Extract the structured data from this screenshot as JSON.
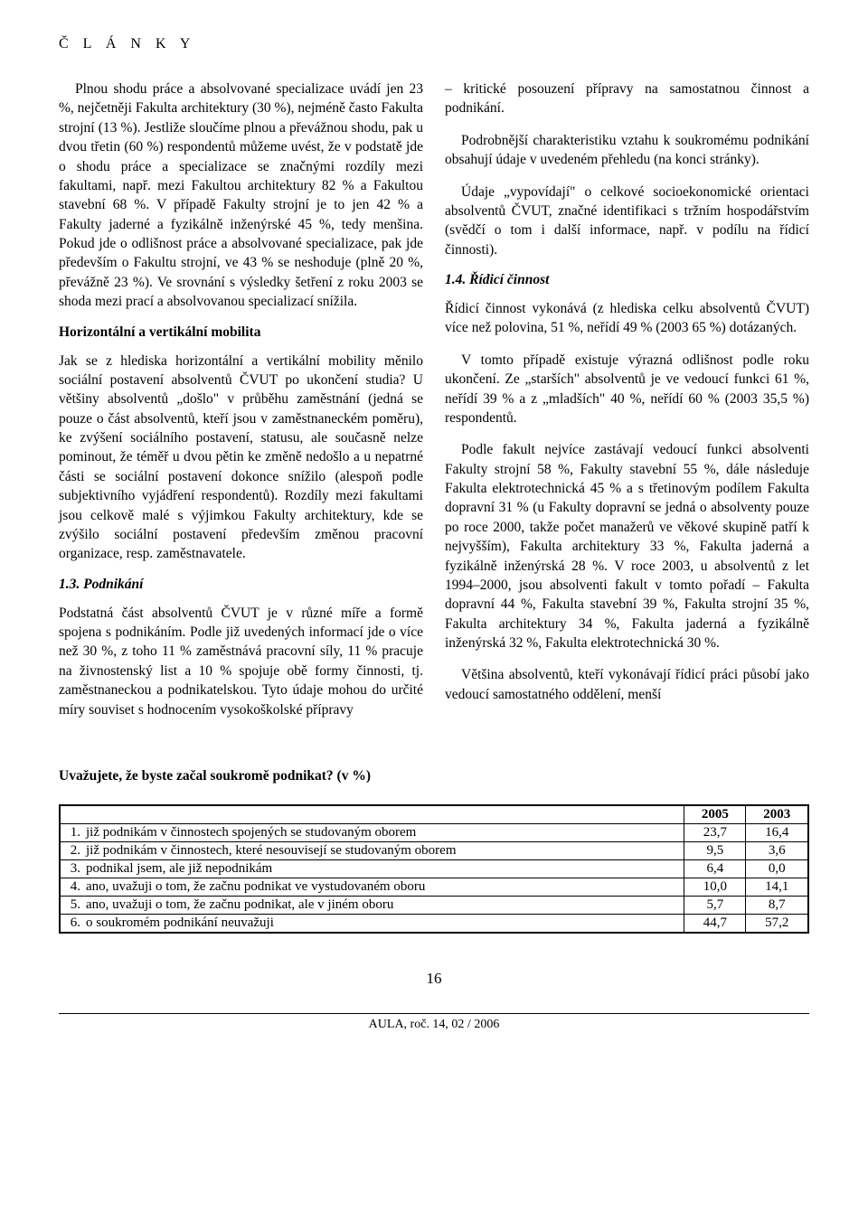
{
  "header": "Č L Á N K Y",
  "left": {
    "p1": "Plnou shodu práce a absolvované specializace uvádí jen 23 %, nejčetněji Fakulta architektury (30 %), nejméně často Fakulta strojní (13 %). Jestliže sloučíme plnou a převážnou shodu, pak u dvou třetin (60 %) respondentů můžeme uvést, že v podstatě jde o shodu práce a specializace se značnými rozdíly mezi fakultami, např. mezi Fakultou architektury 82 % a Fakultou stavební 68 %. V případě Fakulty strojní je to jen 42 % a Fakulty jaderné a fyzikálně inženýrské 45 %, tedy menšina. Pokud jde o odlišnost práce a absolvované specializace, pak jde především o Fakultu strojní, ve 43 % se neshoduje (plně 20 %, převážně 23 %). Ve srovnání s výsledky šetření z roku 2003 se shoda mezi prací a absolvovanou specializací snížila.",
    "h1": "Horizontální a vertikální mobilita",
    "p2": "Jak se z hlediska horizontální a vertikální mobility měnilo sociální postavení absolventů ČVUT po ukončení studia? U většiny absolventů „došlo\" v průběhu zaměstnání (jedná se pouze o část absolventů, kteří jsou v zaměstnaneckém poměru), ke zvýšení sociálního postavení, statusu, ale současně nelze pominout, že téměř u dvou pětin ke změně nedošlo a u nepatrné části se sociální postavení dokonce snížilo (alespoň podle subjektivního vyjádření respondentů). Rozdíly mezi fakultami jsou celkově malé s výjimkou Fakulty architektury, kde se zvýšilo sociální postavení především změnou pracovní organizace, resp. zaměstnavatele.",
    "h2": "1.3. Podnikání",
    "p3": "Podstatná část absolventů ČVUT je v různé míře a formě spojena s podnikáním. Podle již uvedených informací jde o více než 30 %, z toho 11 % zaměstnává pracovní síly, 11 % pracuje na živnostenský list a 10 % spojuje obě formy činnosti, tj. zaměstnaneckou a podnikatelskou. Tyto údaje mohou do určité míry souviset s hodnocením vysokoškolské přípravy"
  },
  "right": {
    "p1": "– kritické posouzení přípravy na samostatnou činnost a podnikání.",
    "p2": "Podrobnější charakteristiku vztahu k soukromému podnikání obsahují údaje v uvedeném přehledu (na konci stránky).",
    "p3": "Údaje „vypovídají\" o celkové socioekonomické orientaci absolventů ČVUT, značné identifikaci s tržním hospodářstvím (svědčí o tom i další informace, např. v podílu na řídicí činnosti).",
    "h1": "1.4. Řídicí činnost",
    "p4": "Řídicí činnost vykonává (z hlediska celku absolventů ČVUT) více než polovina, 51 %, neřídí 49 % (2003 65 %) dotázaných.",
    "p5": "V tomto případě existuje výrazná odlišnost podle roku ukončení. Ze „starších\" absolventů je ve vedoucí funkci 61 %, neřídí 39 % a z „mladších\" 40 %, neřídí 60 % (2003 35,5 %) respondentů.",
    "p6": "Podle fakult nejvíce zastávají vedoucí funkci absolventi Fakulty strojní 58 %, Fakulty stavební 55 %, dále následuje Fakulta elektrotechnická 45 % a s třetinovým podílem Fakulta dopravní 31 % (u Fakulty dopravní se jedná o absolventy pouze po roce 2000, takže počet manažerů ve věkové skupině patří k nejvyšším), Fakulta architektury 33 %, Fakulta jaderná a fyzikálně inženýrská 28 %. V roce 2003, u absolventů z let 1994–2000, jsou absolventi fakult v tomto pořadí – Fakulta dopravní 44 %, Fakulta stavební 39 %, Fakulta strojní 35 %, Fakulta architektury 34 %, Fakulta jaderná a fyzikálně inženýrská 32 %, Fakulta elektrotechnická 30 %.",
    "p7": "Většina absolventů, kteří vykonávají řídicí práci působí jako vedoucí samostatného oddělení, menší"
  },
  "table": {
    "title": "Uvažujete, že byste začal soukromě podnikat? (v %)",
    "col1": "2005",
    "col2": "2003",
    "rows": [
      {
        "n": "1.",
        "t": "již podnikám v činnostech spojených se studovaným oborem",
        "a": "23,7",
        "b": "16,4"
      },
      {
        "n": "2.",
        "t": "již podnikám v činnostech, které nesouvisejí se studovaným oborem",
        "a": "9,5",
        "b": "3,6"
      },
      {
        "n": "3.",
        "t": "podnikal jsem, ale již nepodnikám",
        "a": "6,4",
        "b": "0,0"
      },
      {
        "n": "4.",
        "t": "ano, uvažuji o tom, že začnu podnikat ve vystudovaném oboru",
        "a": "10,0",
        "b": "14,1"
      },
      {
        "n": "5.",
        "t": "ano, uvažuji o tom, že začnu podnikat, ale v jiném oboru",
        "a": "5,7",
        "b": "8,7"
      },
      {
        "n": "6.",
        "t": "o soukromém podnikání neuvažuji",
        "a": "44,7",
        "b": "57,2"
      }
    ]
  },
  "pagenum": "16",
  "footer": "AULA, roč. 14, 02 / 2006"
}
